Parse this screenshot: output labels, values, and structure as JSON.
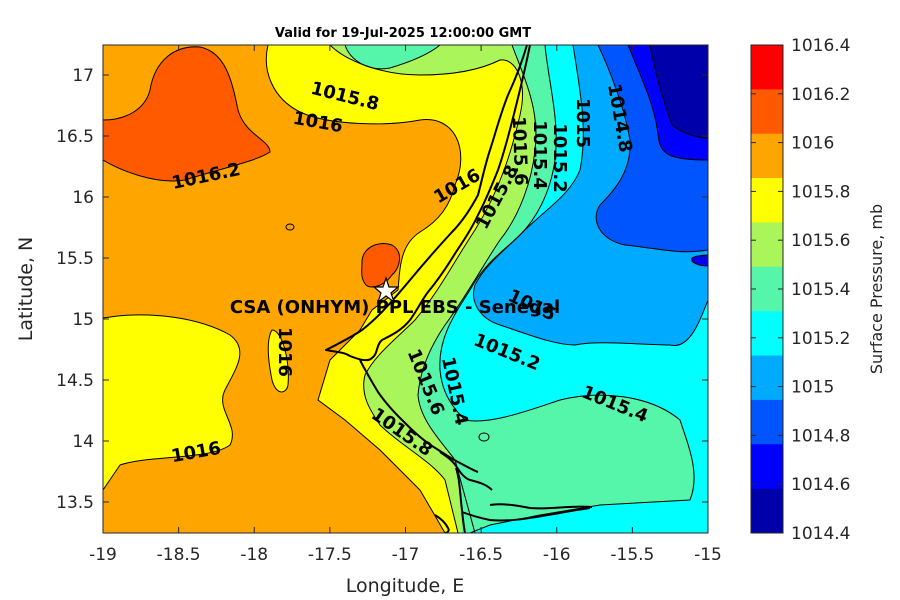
{
  "title": "Valid for 19-Jul-2025 12:00:00 GMT",
  "station_label": "CSA (ONHYM) PPL EBS  - Senegal",
  "station_marker": "star-icon",
  "axes": {
    "xlabel": "Longitude, E",
    "ylabel": "Latitude, N",
    "xticks": [
      "-19",
      "-18.5",
      "-18",
      "-17.5",
      "-17",
      "-16.5",
      "-16",
      "-15.5",
      "-15"
    ],
    "yticks": [
      "13.5",
      "14",
      "14.5",
      "15",
      "15.5",
      "16",
      "16.5",
      "17"
    ]
  },
  "colorbar": {
    "label": "Surface Pressure, mb",
    "ticks": [
      "1016.4",
      "1016.2",
      "1016",
      "1015.8",
      "1015.6",
      "1015.4",
      "1015.2",
      "1015",
      "1014.8",
      "1014.6",
      "1014.4"
    ],
    "colors": [
      "#FF0000",
      "#FF5A00",
      "#FFA500",
      "#FFFF00",
      "#AAF55A",
      "#55F5AA",
      "#00FFFF",
      "#00AAFF",
      "#0055FF",
      "#0000FF",
      "#0000AA"
    ]
  },
  "contour_labels": [
    {
      "text": "1015.8"
    },
    {
      "text": "1016"
    },
    {
      "text": "1016.2"
    },
    {
      "text": "1016"
    },
    {
      "text": "1015.8"
    },
    {
      "text": "1015.6"
    },
    {
      "text": "1015.4"
    },
    {
      "text": "1015.2"
    },
    {
      "text": "1015"
    },
    {
      "text": "1014.8"
    },
    {
      "text": "1015"
    },
    {
      "text": "1015.2"
    },
    {
      "text": "1016"
    },
    {
      "text": "1015.6"
    },
    {
      "text": "1015.4"
    },
    {
      "text": "1015.8"
    },
    {
      "text": "1015.4"
    },
    {
      "text": "1016"
    }
  ]
}
